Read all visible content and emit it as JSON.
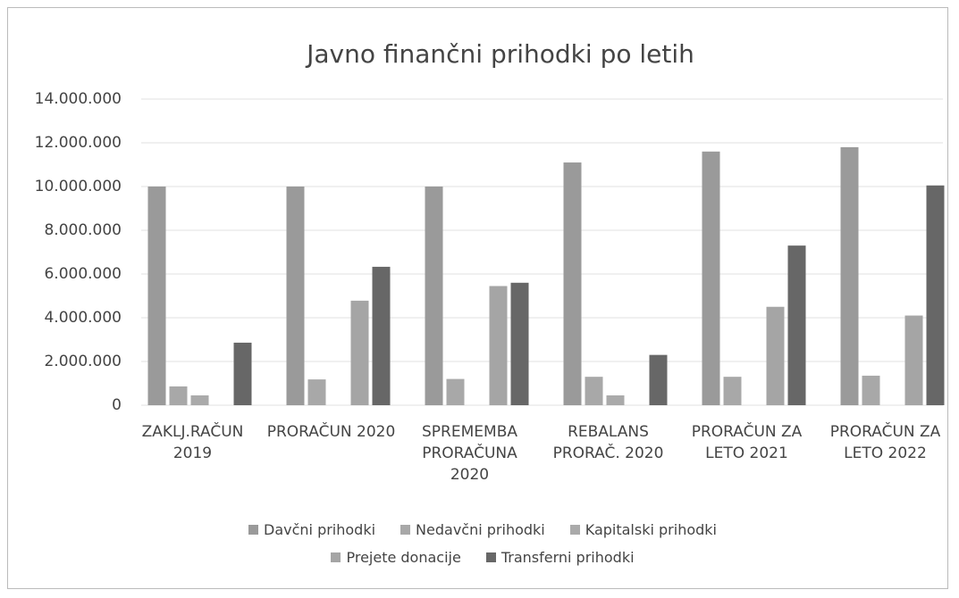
{
  "chart_data": {
    "type": "bar",
    "title": "Javno finančni prihodki po letih",
    "categories": [
      "ZAKLJ.RAČUN 2019",
      "PRORAČUN 2020",
      "SPREMEMBA PRORAČUNA 2020",
      "REBALANS PRORAČ. 2020",
      "PRORAČUN ZA LETO 2021",
      "PRORAČUN ZA LETO 2022"
    ],
    "series": [
      {
        "name": "Davčni prihodki",
        "color": "#9a9a9a",
        "values": [
          10000000,
          10000000,
          10000000,
          11100000,
          11600000,
          11800000
        ]
      },
      {
        "name": "Nedavčni prihodki",
        "color": "#a8a8a8",
        "values": [
          860000,
          1180000,
          1200000,
          1300000,
          1300000,
          1350000
        ]
      },
      {
        "name": "Kapitalski prihodki",
        "color": "#aaaaaa",
        "values": [
          450000,
          0,
          0,
          450000,
          0,
          0
        ]
      },
      {
        "name": "Prejete donacije",
        "color": "#a5a5a5",
        "values": [
          0,
          4780000,
          5450000,
          0,
          4500000,
          4100000
        ]
      },
      {
        "name": "Transferni prihodki",
        "color": "#676767",
        "values": [
          2860000,
          6330000,
          5600000,
          2300000,
          7300000,
          10050000
        ]
      }
    ],
    "ylim": [
      0,
      14000000
    ],
    "yticks": [
      0,
      {
        "value": 2000000,
        "label": "2.000.000"
      },
      {
        "value": 4000000,
        "label": "4.000.000"
      },
      {
        "value": 6000000,
        "label": "6.000.000"
      },
      {
        "value": 8000000,
        "label": "8.000.000"
      },
      {
        "value": 10000000,
        "label": "10.000.000"
      },
      {
        "value": 12000000,
        "label": "12.000.000"
      },
      {
        "value": 14000000,
        "label": "14.000.000"
      }
    ],
    "grid": true
  }
}
